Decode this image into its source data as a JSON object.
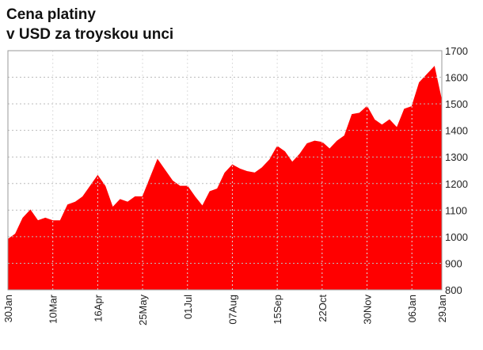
{
  "chart_data": {
    "type": "area",
    "title": "Cena platiny",
    "subtitle": "v USD za troyskou unci",
    "categories": [
      "30Jan",
      null,
      null,
      null,
      null,
      null,
      "10Mar",
      null,
      null,
      null,
      null,
      null,
      "16Apr",
      null,
      null,
      null,
      null,
      null,
      "25May",
      null,
      null,
      null,
      null,
      null,
      "01Jul",
      null,
      null,
      null,
      null,
      null,
      "07Aug",
      null,
      null,
      null,
      null,
      null,
      "15Sep",
      null,
      null,
      null,
      null,
      null,
      "22Oct",
      null,
      null,
      null,
      null,
      null,
      "30Nov",
      null,
      null,
      null,
      null,
      null,
      "06Jan",
      null,
      null,
      null,
      "29Jan"
    ],
    "values": [
      990,
      1010,
      1070,
      1100,
      1060,
      1070,
      1060,
      1060,
      1120,
      1130,
      1150,
      1190,
      1230,
      1190,
      1110,
      1140,
      1130,
      1150,
      1150,
      1220,
      1290,
      1250,
      1210,
      1190,
      1190,
      1150,
      1115,
      1170,
      1180,
      1240,
      1270,
      1255,
      1245,
      1240,
      1260,
      1290,
      1340,
      1320,
      1280,
      1310,
      1350,
      1360,
      1355,
      1330,
      1360,
      1380,
      1460,
      1465,
      1490,
      1440,
      1420,
      1440,
      1410,
      1480,
      1490,
      1580,
      1610,
      1640,
      1510
    ],
    "color": "#ff0000",
    "ylim": [
      800,
      1700
    ],
    "yticks": [
      800,
      900,
      1000,
      1100,
      1200,
      1300,
      1400,
      1500,
      1600,
      1700
    ],
    "grid": true
  }
}
